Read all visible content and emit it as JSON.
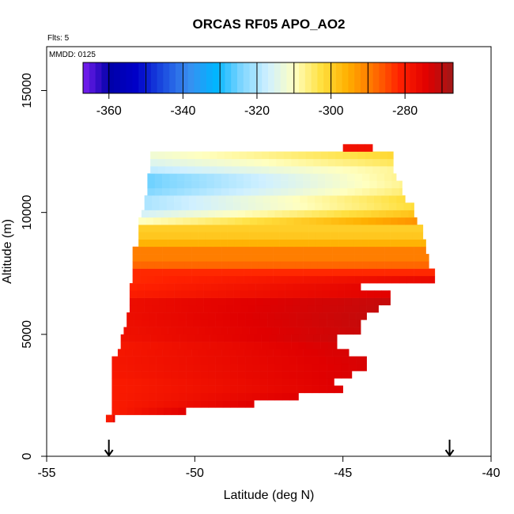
{
  "chart_data": {
    "type": "heatmap",
    "title": "ORCAS RF05 APO_AO2",
    "flights_note": "Flts: 5",
    "date_note": "MMDD: 0125",
    "xlabel": "Latitude (deg N)",
    "ylabel": "Altitude (m)",
    "xlim": [
      -55,
      -40
    ],
    "ylim": [
      0,
      16800
    ],
    "x_ticks": [
      -55,
      -50,
      -45,
      -40
    ],
    "x_tick_labels": [
      "-55",
      "-50",
      "-45",
      "-40"
    ],
    "y_ticks": [
      0,
      5000,
      10000,
      15000
    ],
    "y_tick_labels": [
      "0",
      "5000",
      "10000",
      "15000"
    ],
    "grid": false,
    "colorbar": {
      "range": [
        -367,
        -267
      ],
      "ticks": [
        -360,
        -340,
        -320,
        -300,
        -280
      ],
      "tick_labels": [
        "-360",
        "-340",
        "-320",
        "-300",
        "-280"
      ],
      "colors": [
        "#7a1ef0",
        "#0000a8",
        "#0000c8",
        "#1a4adf",
        "#3a8ef0",
        "#00b4ff",
        "#7fd6ff",
        "#d0f0ff",
        "#ffffc0",
        "#ffe040",
        "#ffb000",
        "#ff7000",
        "#ff2000",
        "#e00000",
        "#a01818"
      ]
    },
    "arrow_markers_x": [
      -52.9,
      -41.4
    ],
    "bin_size": {
      "lat": 0.25,
      "alt": 300
    },
    "profile": [
      {
        "alt": 1400,
        "lat_min": -53.0,
        "lat_max": -52.7
      },
      {
        "alt": 1700,
        "lat_min": -52.8,
        "lat_max": -50.3
      },
      {
        "alt": 2000,
        "lat_min": -52.8,
        "lat_max": -48.0
      },
      {
        "alt": 2300,
        "lat_min": -52.8,
        "lat_max": -46.5
      },
      {
        "alt": 2600,
        "lat_min": -52.8,
        "lat_max": -45.0
      },
      {
        "alt": 2900,
        "lat_min": -52.8,
        "lat_max": -45.3
      },
      {
        "alt": 3200,
        "lat_min": -52.8,
        "lat_max": -44.7
      },
      {
        "alt": 3500,
        "lat_min": -52.8,
        "lat_max": -44.2
      },
      {
        "alt": 3800,
        "lat_min": -52.8,
        "lat_max": -44.2
      },
      {
        "alt": 4100,
        "lat_min": -52.6,
        "lat_max": -44.8
      },
      {
        "alt": 4400,
        "lat_min": -52.5,
        "lat_max": -45.2
      },
      {
        "alt": 4700,
        "lat_min": -52.5,
        "lat_max": -45.2
      },
      {
        "alt": 5000,
        "lat_min": -52.4,
        "lat_max": -44.4
      },
      {
        "alt": 5300,
        "lat_min": -52.3,
        "lat_max": -44.4
      },
      {
        "alt": 5600,
        "lat_min": -52.3,
        "lat_max": -44.2
      },
      {
        "alt": 5900,
        "lat_min": -52.2,
        "lat_max": -43.8
      },
      {
        "alt": 6200,
        "lat_min": -52.2,
        "lat_max": -43.4
      },
      {
        "alt": 6500,
        "lat_min": -52.2,
        "lat_max": -43.4
      },
      {
        "alt": 6800,
        "lat_min": -52.2,
        "lat_max": -44.4
      },
      {
        "alt": 7100,
        "lat_min": -52.1,
        "lat_max": -41.9
      },
      {
        "alt": 7400,
        "lat_min": -52.1,
        "lat_max": -41.9
      },
      {
        "alt": 7700,
        "lat_min": -52.1,
        "lat_max": -42.1
      },
      {
        "alt": 8000,
        "lat_min": -52.1,
        "lat_max": -42.1
      },
      {
        "alt": 8300,
        "lat_min": -52.1,
        "lat_max": -42.2
      },
      {
        "alt": 8600,
        "lat_min": -51.9,
        "lat_max": -42.2
      },
      {
        "alt": 8900,
        "lat_min": -51.9,
        "lat_max": -42.3
      },
      {
        "alt": 9200,
        "lat_min": -51.9,
        "lat_max": -42.3
      },
      {
        "alt": 9500,
        "lat_min": -51.9,
        "lat_max": -42.5
      },
      {
        "alt": 9800,
        "lat_min": -51.8,
        "lat_max": -42.6
      },
      {
        "alt": 10100,
        "lat_min": -51.7,
        "lat_max": -42.6
      },
      {
        "alt": 10400,
        "lat_min": -51.7,
        "lat_max": -42.9
      },
      {
        "alt": 10700,
        "lat_min": -51.6,
        "lat_max": -43.0
      },
      {
        "alt": 11000,
        "lat_min": -51.6,
        "lat_max": -43.0
      },
      {
        "alt": 11300,
        "lat_min": -51.6,
        "lat_max": -43.2
      },
      {
        "alt": 11600,
        "lat_min": -51.5,
        "lat_max": -43.3
      },
      {
        "alt": 11900,
        "lat_min": -51.5,
        "lat_max": -43.3
      },
      {
        "alt": 12200,
        "lat_min": -51.5,
        "lat_max": -43.3
      },
      {
        "alt": 12500,
        "lat_min": -45.0,
        "lat_max": -44.0
      }
    ],
    "value_bands": [
      {
        "alt_from": 1300,
        "alt_to": 3000,
        "value": -280
      },
      {
        "alt_from": 3000,
        "alt_to": 4500,
        "value": -279
      },
      {
        "alt_from": 4500,
        "alt_to": 6500,
        "value": -277
      },
      {
        "alt_from": 6500,
        "alt_to": 7500,
        "value": -282
      },
      {
        "alt_from": 7500,
        "alt_to": 8500,
        "value": -290
      },
      {
        "alt_from": 8500,
        "alt_to": 9500,
        "value": -300
      },
      {
        "alt_from": 9500,
        "alt_to": 10500,
        "value": -320
      },
      {
        "alt_from": 10500,
        "alt_to": 11500,
        "value": -325
      },
      {
        "alt_from": 11500,
        "alt_to": 12800,
        "value": -312
      }
    ]
  }
}
